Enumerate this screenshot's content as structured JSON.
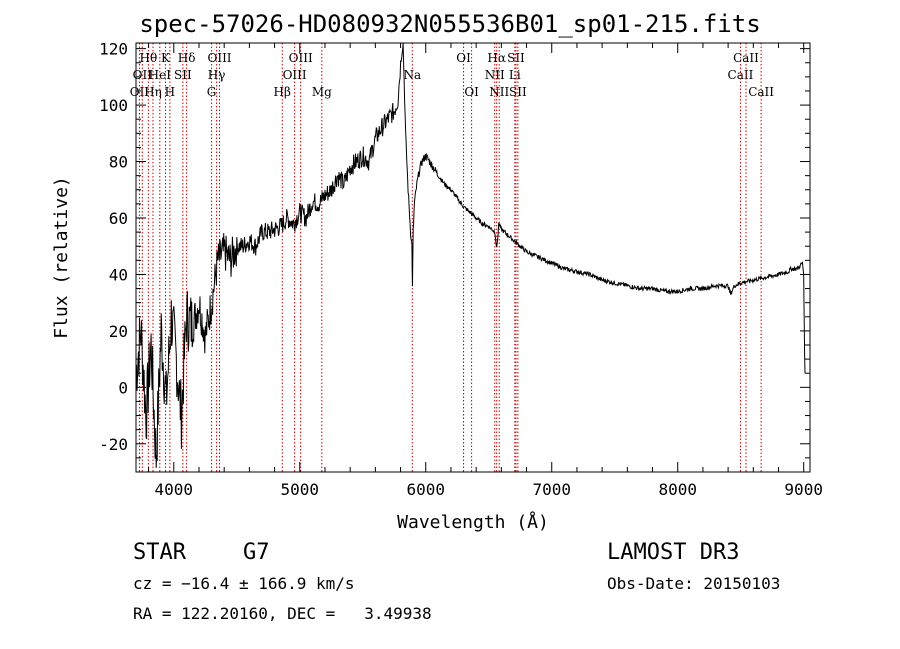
{
  "chart_data": {
    "type": "line",
    "title": "spec-57026-HD080932N055536B01_sp01-215.fits",
    "xlabel": "Wavelength (Å)",
    "ylabel": "Flux (relative)",
    "xlim": [
      3700,
      9050
    ],
    "ylim": [
      -30,
      122
    ],
    "xticks": [
      4000,
      5000,
      6000,
      7000,
      8000,
      9000
    ],
    "yticks": [
      -20,
      0,
      20,
      40,
      60,
      80,
      100,
      120
    ],
    "series": [
      {
        "name": "flux",
        "x": [
          3700,
          3740,
          3780,
          3820,
          3860,
          3900,
          3940,
          3980,
          4020,
          4060,
          4100,
          4150,
          4200,
          4250,
          4300,
          4350,
          4400,
          4450,
          4500,
          4550,
          4600,
          4650,
          4700,
          4750,
          4800,
          4850,
          4900,
          4950,
          5000,
          5050,
          5100,
          5150,
          5200,
          5250,
          5300,
          5350,
          5400,
          5450,
          5500,
          5550,
          5600,
          5650,
          5700,
          5750,
          5780,
          5800,
          5820,
          5840,
          5860,
          5880,
          5890,
          5895,
          5900,
          5910,
          5930,
          5950,
          5970,
          6000,
          6030,
          6060,
          6100,
          6150,
          6200,
          6250,
          6300,
          6350,
          6400,
          6450,
          6500,
          6550,
          6563,
          6580,
          6600,
          6650,
          6700,
          6750,
          6800,
          6900,
          7000,
          7100,
          7200,
          7300,
          7400,
          7500,
          7600,
          7700,
          7800,
          7900,
          8000,
          8100,
          8200,
          8300,
          8400,
          8420,
          8450,
          8500,
          8600,
          8700,
          8800,
          8880,
          8900,
          8950,
          8990,
          9000,
          9005,
          9010
        ],
        "y": [
          5,
          20,
          -10,
          15,
          -25,
          20,
          -5,
          25,
          10,
          -10,
          25,
          22,
          30,
          18,
          30,
          45,
          48,
          45,
          50,
          50,
          52,
          50,
          55,
          55,
          56,
          57,
          60,
          58,
          62,
          60,
          66,
          65,
          68,
          70,
          75,
          72,
          78,
          80,
          82,
          80,
          88,
          92,
          95,
          98,
          102,
          115,
          122,
          90,
          70,
          55,
          50,
          35,
          55,
          65,
          72,
          77,
          80,
          82,
          80,
          78,
          75,
          72,
          70,
          67,
          64,
          62,
          60,
          58,
          57,
          55,
          49,
          58,
          56,
          54,
          52,
          50,
          48,
          46,
          44,
          42,
          41,
          40,
          38,
          37,
          36,
          35,
          35,
          34,
          34,
          35,
          35,
          36,
          36,
          33,
          36,
          37,
          38,
          39,
          40,
          41,
          42,
          42,
          44,
          40,
          20,
          5
        ]
      }
    ],
    "lines": [
      {
        "wl": 3727,
        "label": "OII",
        "row": 3
      },
      {
        "wl": 3750,
        "label": "OII",
        "row": 2
      },
      {
        "wl": 3798,
        "label": "Hθ",
        "row": 1
      },
      {
        "wl": 3835,
        "label": "Hη",
        "row": 3
      },
      {
        "wl": 3889,
        "label": "HeI",
        "row": 2
      },
      {
        "wl": 3934,
        "label": "K",
        "row": 1
      },
      {
        "wl": 3969,
        "label": "H",
        "row": 3
      },
      {
        "wl": 4072,
        "label": "SII",
        "row": 2
      },
      {
        "wl": 4102,
        "label": "Hδ",
        "row": 1
      },
      {
        "wl": 4300,
        "label": "G",
        "row": 3
      },
      {
        "wl": 4340,
        "label": "Hγ",
        "row": 2
      },
      {
        "wl": 4363,
        "label": "OIII",
        "row": 1
      },
      {
        "wl": 4861,
        "label": "Hβ",
        "row": 3
      },
      {
        "wl": 4959,
        "label": "OIII",
        "row": 2
      },
      {
        "wl": 5007,
        "label": "OIII",
        "row": 1
      },
      {
        "wl": 5175,
        "label": "Mg",
        "row": 3
      },
      {
        "wl": 5893,
        "label": "Na",
        "row": 2
      },
      {
        "wl": 6300,
        "label": "OI",
        "row": 1
      },
      {
        "wl": 6364,
        "label": "OI",
        "row": 3
      },
      {
        "wl": 6548,
        "label": "NII",
        "row": 2
      },
      {
        "wl": 6563,
        "label": "Hα",
        "row": 1
      },
      {
        "wl": 6583,
        "label": "NII",
        "row": 3
      },
      {
        "wl": 6707,
        "label": "Li",
        "row": 2
      },
      {
        "wl": 6716,
        "label": "SII",
        "row": 1
      },
      {
        "wl": 6731,
        "label": "SII",
        "row": 3
      },
      {
        "wl": 8498,
        "label": "CaII",
        "row": 2
      },
      {
        "wl": 8542,
        "label": "CaII",
        "row": 1
      },
      {
        "wl": 8662,
        "label": "CaII",
        "row": 3
      }
    ]
  },
  "footer": {
    "object_class": "STAR",
    "subclass": "G7",
    "survey": "LAMOST DR3",
    "cz": "cz = −16.4 ± 166.9 km/s",
    "obs_date": "Obs-Date: 20150103",
    "coords": "RA = 122.20160, DEC =   3.49938"
  }
}
